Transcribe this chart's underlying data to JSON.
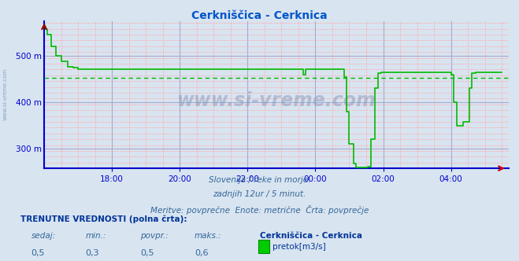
{
  "title": "Cerkniščica - Cerknica",
  "title_color": "#0055cc",
  "bg_color": "#d8e4f0",
  "axis_color": "#0000cc",
  "line_color": "#00bb00",
  "avg_line_color": "#00bb00",
  "minor_grid_color": "#ffaaaa",
  "major_grid_color": "#aaaacc",
  "ylim": [
    258,
    575
  ],
  "yticks": [
    300,
    400,
    500
  ],
  "ytick_labels": [
    "300 m",
    "400 m",
    "500 m"
  ],
  "xlim": [
    16.0,
    29.7
  ],
  "xticks": [
    18,
    20,
    22,
    24,
    26,
    28
  ],
  "xtick_labels": [
    "18:00",
    "20:00",
    "22:00",
    "00:00",
    "02:00",
    "04:00"
  ],
  "avg_value_y": 452,
  "watermark": "www.si-vreme.com",
  "subtitle1": "Slovenija / reke in morje.",
  "subtitle2": "zadnjih 12ur / 5 minut.",
  "subtitle3": "Meritve: povprečne  Enote: metrične  Črta: povprečje",
  "legend_label": "pretok[m3/s]",
  "station_label": "Cerkniščica - Cerknica",
  "val_sedaj": "0,5",
  "val_min": "0,3",
  "val_povpr": "0,5",
  "val_maks": "0,6",
  "label_color": "#336699",
  "title2_color": "#003399",
  "sidewater_color": "#6688aa",
  "series": {
    "t": [
      16.0,
      16.02,
      16.05,
      16.1,
      16.2,
      16.35,
      16.5,
      16.7,
      16.85,
      17.0,
      17.0,
      23.65,
      23.65,
      23.7,
      23.7,
      24.85,
      24.85,
      24.92,
      24.92,
      25.0,
      25.0,
      25.12,
      25.12,
      25.2,
      25.2,
      25.55,
      25.55,
      25.65,
      25.65,
      25.75,
      25.75,
      25.85,
      25.85,
      25.95,
      25.95,
      28.0,
      28.0,
      28.08,
      28.08,
      28.18,
      28.18,
      28.35,
      28.35,
      28.55,
      28.55,
      28.62,
      28.62,
      28.72,
      28.72,
      29.5
    ],
    "y": [
      565,
      563,
      558,
      545,
      520,
      500,
      488,
      477,
      474,
      472,
      472,
      472,
      460,
      460,
      472,
      472,
      455,
      440,
      380,
      310,
      310,
      268,
      268,
      260,
      260,
      260,
      262,
      290,
      320,
      390,
      430,
      455,
      462,
      464,
      464,
      464,
      460,
      440,
      400,
      362,
      350,
      350,
      358,
      390,
      430,
      455,
      462,
      464,
      464,
      464
    ]
  }
}
